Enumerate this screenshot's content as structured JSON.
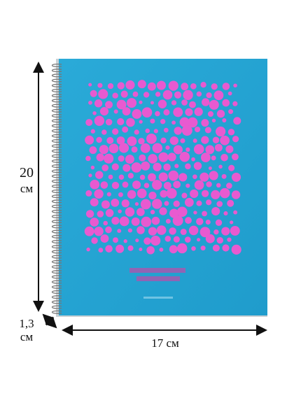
{
  "dimensions": {
    "height": {
      "value": "20",
      "unit": "см"
    },
    "thickness": {
      "value": "1,3",
      "unit": "см"
    },
    "width": "17 см"
  }
}
